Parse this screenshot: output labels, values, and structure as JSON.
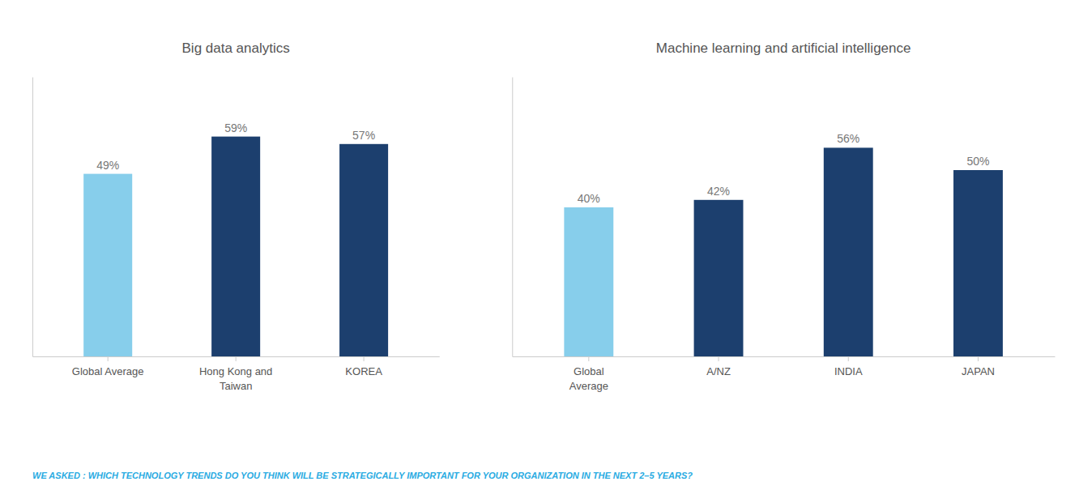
{
  "chart_data": [
    {
      "type": "bar",
      "title": "Big data analytics",
      "categories": [
        "Global Average",
        "Hong Kong and\nTaiwan",
        "KOREA"
      ],
      "values": [
        49,
        59,
        57
      ],
      "value_labels": [
        "49%",
        "59%",
        "57%"
      ],
      "colors": [
        "#87CEEB",
        "#1C3F6E",
        "#1C3F6E"
      ],
      "ylim": [
        0,
        75
      ],
      "grid": false,
      "data_labels": true,
      "tick_labels": "x",
      "annotations": [
        "WE ASKED : WHICH TECHNOLOGY TRENDS DO YOU THINK WILL BE STRATEGICALLY IMPORTANT FOR YOUR ORGANIZATION IN THE NEXT 2–5 YEARS?"
      ]
    },
    {
      "type": "bar",
      "title": "Machine learning and artificial intelligence",
      "categories": [
        "Global\nAverage",
        "A/NZ",
        "INDIA",
        "JAPAN"
      ],
      "values": [
        40,
        42,
        56,
        50
      ],
      "value_labels": [
        "40%",
        "42%",
        "56%",
        "50%"
      ],
      "colors": [
        "#87CEEB",
        "#1C3F6E",
        "#1C3F6E",
        "#1C3F6E"
      ],
      "ylim": [
        0,
        75
      ],
      "grid": false,
      "data_labels": true,
      "tick_labels": "x"
    }
  ]
}
